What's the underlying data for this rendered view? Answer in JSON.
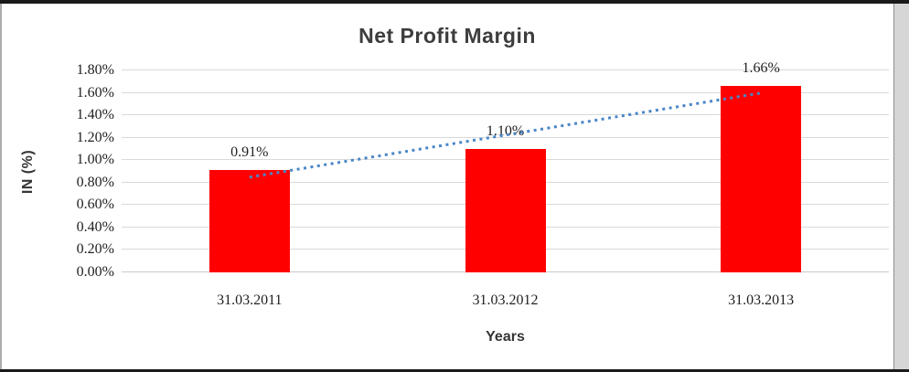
{
  "chart_data": {
    "type": "bar",
    "title": "Net Profit Margin",
    "categories": [
      "31.03.2011",
      "31.03.2012",
      "31.03.2013"
    ],
    "values": [
      0.91,
      1.1,
      1.66
    ],
    "data_labels": [
      "0.91%",
      "1.10%",
      "1.66%"
    ],
    "xlabel": "Years",
    "ylabel": "IN (%)",
    "ylim": [
      0,
      1.8
    ],
    "ytick_step": 0.2,
    "ytick_labels": [
      "0.00%",
      "0.20%",
      "0.40%",
      "0.60%",
      "0.80%",
      "1.00%",
      "1.20%",
      "1.40%",
      "1.60%",
      "1.80%"
    ],
    "grid": true,
    "legend": "none",
    "bar_color": "#FF0000",
    "gridline_color": "#D9D9D9",
    "trendline": {
      "type": "linear",
      "style": "dotted",
      "color": "#4A86C8"
    }
  }
}
